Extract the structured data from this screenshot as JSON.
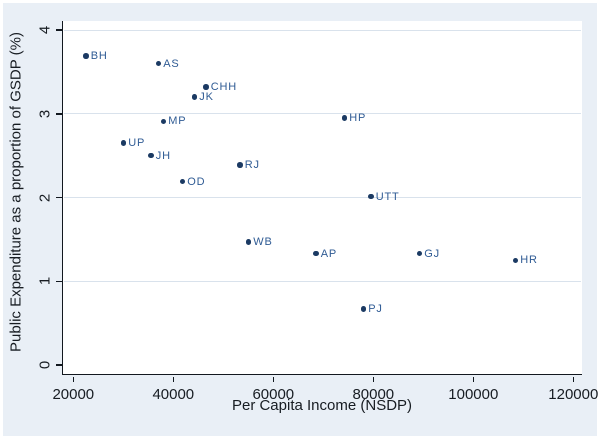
{
  "colors": {
    "figure_background": "#e9eff6",
    "plot_background": "#ffffff",
    "gridline": "#d9e2ec",
    "axis_line": "#12181f",
    "tick_text": "#171c22",
    "marker": "#1b3a63",
    "point_label_text": "#2f5b94"
  },
  "chart_data": {
    "type": "scatter",
    "title": "",
    "xlabel": "Per Capita Income (NSDP)",
    "ylabel": "Public Expenditure as a proportion of GSDP (%)",
    "xlim": [
      20000,
      120000
    ],
    "ylim": [
      0,
      4
    ],
    "x_ticks": [
      20000,
      40000,
      60000,
      80000,
      100000,
      120000
    ],
    "x_tick_labels": [
      "20000",
      "40000",
      "60000",
      "80000",
      "100000",
      "120000"
    ],
    "y_ticks": [
      0,
      1,
      2,
      3,
      4
    ],
    "y_tick_labels": [
      "0",
      "1",
      "2",
      "3",
      "4"
    ],
    "grid": "horizontal-only",
    "legend": "none",
    "points": [
      {
        "label": "BH",
        "x": 22500,
        "y": 3.69
      },
      {
        "label": "AS",
        "x": 37000,
        "y": 3.6
      },
      {
        "label": "CHH",
        "x": 46500,
        "y": 3.32
      },
      {
        "label": "JK",
        "x": 44200,
        "y": 3.2
      },
      {
        "label": "HP",
        "x": 74200,
        "y": 2.95
      },
      {
        "label": "MP",
        "x": 38000,
        "y": 2.91
      },
      {
        "label": "UP",
        "x": 30000,
        "y": 2.65
      },
      {
        "label": "JH",
        "x": 35500,
        "y": 2.5
      },
      {
        "label": "RJ",
        "x": 53300,
        "y": 2.39
      },
      {
        "label": "OD",
        "x": 41800,
        "y": 2.19
      },
      {
        "label": "UTT",
        "x": 79500,
        "y": 2.01
      },
      {
        "label": "WB",
        "x": 55000,
        "y": 1.47
      },
      {
        "label": "AP",
        "x": 68500,
        "y": 1.33
      },
      {
        "label": "GJ",
        "x": 89200,
        "y": 1.33
      },
      {
        "label": "HR",
        "x": 108400,
        "y": 1.25
      },
      {
        "label": "PJ",
        "x": 78000,
        "y": 0.67
      }
    ]
  }
}
